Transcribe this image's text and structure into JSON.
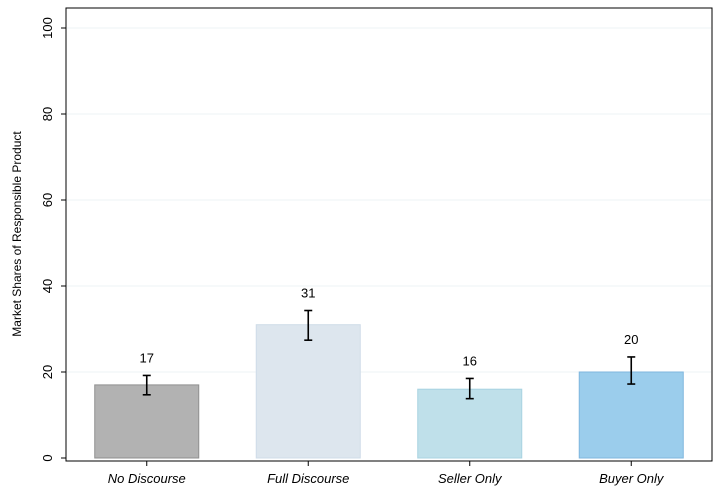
{
  "chart_data": {
    "type": "bar",
    "title": "",
    "xlabel": "",
    "ylabel": "Market Shares of Responsible Product",
    "categories": [
      "No Discourse",
      "Full Discourse",
      "Seller Only",
      "Buyer Only"
    ],
    "values": [
      17,
      31,
      16,
      20
    ],
    "data_labels": [
      "17",
      "31",
      "16",
      "20"
    ],
    "error_bars": [
      {
        "low": 14.7,
        "high": 19.2
      },
      {
        "low": 27.4,
        "high": 34.3
      },
      {
        "low": 13.8,
        "high": 18.5
      },
      {
        "low": 17.2,
        "high": 23.5
      }
    ],
    "bar_colors": [
      "#b2b2b2",
      "#dde6ee",
      "#bfe0ea",
      "#9bcdec"
    ],
    "bar_edge_colors": [
      "#8f8f8f",
      "#cfdce8",
      "#a8d3e1",
      "#7fb6de"
    ],
    "ylim": [
      0,
      100
    ],
    "yticks": [
      0,
      20,
      40,
      60,
      80,
      100
    ],
    "ytick_labels": [
      "0",
      "20",
      "40",
      "60",
      "80",
      "100"
    ],
    "grid": "horizontal",
    "grid_color": "#eef3f6",
    "legend": "none"
  }
}
